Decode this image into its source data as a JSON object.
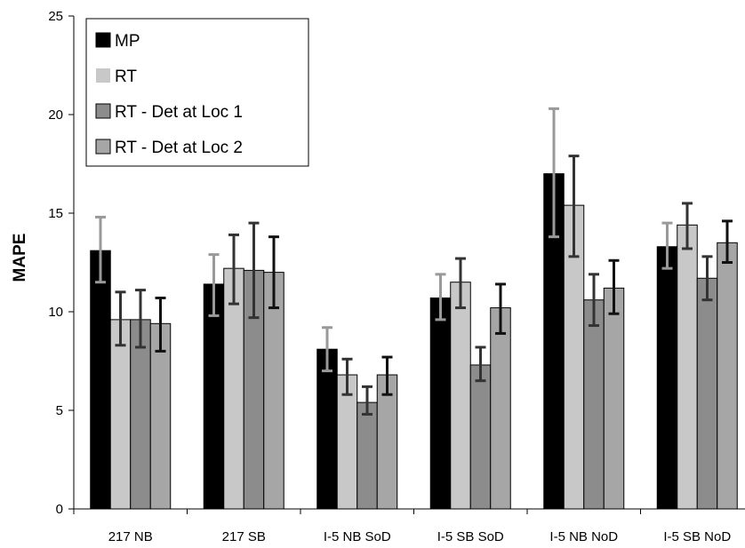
{
  "chart_data": {
    "type": "bar",
    "title": "",
    "xlabel": "",
    "ylabel": "MAPE",
    "ylim": [
      0,
      25
    ],
    "yticks": [
      0,
      5,
      10,
      15,
      20,
      25
    ],
    "grid": false,
    "legend_position": "top-left",
    "categories": [
      "217 NB",
      "217 SB",
      "I-5 NB SoD",
      "I-5 SB SoD",
      "I-5 NB NoD",
      "I-5 SB NoD"
    ],
    "series": [
      {
        "name": "MP",
        "color": "#000000",
        "error_color": "#999999",
        "values": [
          13.1,
          11.4,
          8.1,
          10.7,
          17.0,
          13.3
        ],
        "error_low": [
          11.5,
          9.8,
          7.0,
          9.6,
          13.8,
          12.2
        ],
        "error_high": [
          14.8,
          12.9,
          9.2,
          11.9,
          20.3,
          14.5
        ]
      },
      {
        "name": "RT",
        "color": "#c8c8c8",
        "error_color": "#333333",
        "values": [
          9.6,
          12.2,
          6.8,
          11.5,
          15.4,
          14.4
        ],
        "error_low": [
          8.3,
          10.4,
          5.8,
          10.2,
          12.8,
          13.2
        ],
        "error_high": [
          11.0,
          13.9,
          7.6,
          12.7,
          17.9,
          15.5
        ]
      },
      {
        "name": "RT - Det at Loc 1",
        "color": "#8c8c8c",
        "error_color": "#333333",
        "values": [
          9.6,
          12.1,
          5.4,
          7.3,
          10.6,
          11.7
        ],
        "error_low": [
          8.2,
          9.7,
          4.8,
          6.5,
          9.3,
          10.6
        ],
        "error_high": [
          11.1,
          14.5,
          6.2,
          8.2,
          11.9,
          12.8
        ]
      },
      {
        "name": "RT - Det at Loc 2",
        "color": "#a6a6a6",
        "error_color": "#111111",
        "values": [
          9.4,
          12.0,
          6.8,
          10.2,
          11.2,
          13.5
        ],
        "error_low": [
          8.0,
          10.2,
          5.8,
          8.9,
          9.9,
          12.5
        ],
        "error_high": [
          10.7,
          13.8,
          7.7,
          11.4,
          12.6,
          14.6
        ]
      }
    ]
  }
}
